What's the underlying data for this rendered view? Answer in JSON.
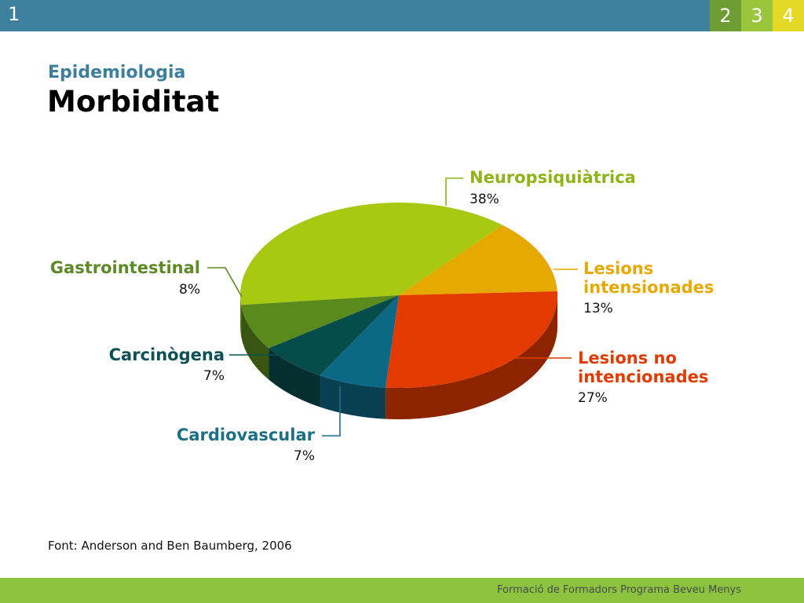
{
  "header": {
    "slide_number": "1",
    "tabs": [
      "2",
      "3",
      "4"
    ]
  },
  "section": "Epidemiologia",
  "title": "Morbiditat",
  "source": "Font: Anderson and Ben Baumberg, 2006",
  "footer": "Formació de Formadors Programa Beveu Menys",
  "chart_data": {
    "type": "pie",
    "title": "",
    "slices": [
      {
        "name": "Neuropsiquiàtrica",
        "value": 38,
        "label": "38%",
        "color": "#a8c812"
      },
      {
        "name": "Lesions intensionades",
        "value": 13,
        "label": "13%",
        "color": "#e6a900"
      },
      {
        "name": "Lesions no intencionades",
        "value": 27,
        "label": "27%",
        "color": "#e23a00"
      },
      {
        "name": "Cardiovascular",
        "value": 7,
        "label": "7%",
        "color": "#0d6885"
      },
      {
        "name": "Carcinògena",
        "value": 7,
        "label": "7%",
        "color": "#064c4a"
      },
      {
        "name": "Gastrointestinal",
        "value": 8,
        "label": "8%",
        "color": "#5a8a1c"
      }
    ],
    "label_colors": [
      "#8fb318",
      "#e6a900",
      "#e03b00",
      "#1d6f86",
      "#0d5157",
      "#5d8a27"
    ],
    "legend": "none"
  }
}
